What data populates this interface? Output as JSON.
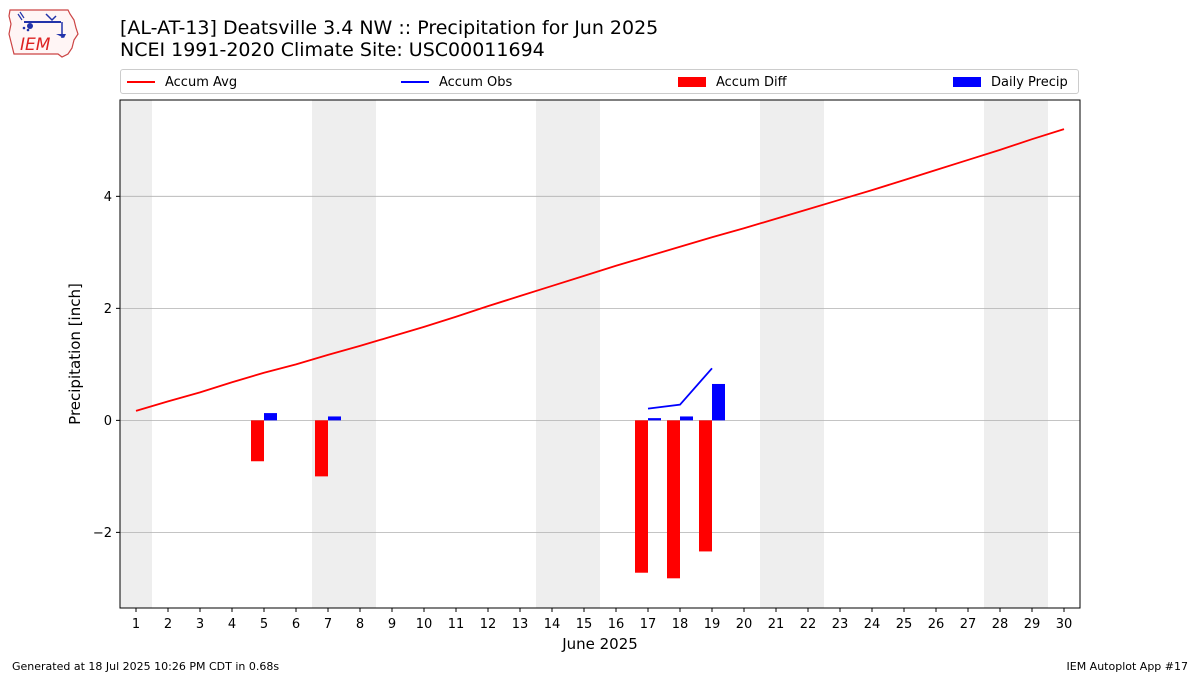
{
  "header": {
    "title_line1": "[AL-AT-13] Deatsville 3.4 NW :: Precipitation for Jun 2025",
    "title_line2": "NCEI 1991-2020 Climate Site: USC00011694"
  },
  "logo": {
    "text": "IEM",
    "icon": "iem-iowa-logo-icon"
  },
  "footer": {
    "left": "Generated at 18 Jul 2025 10:26 PM CDT in 0.68s",
    "right": "IEM Autoplot App #17"
  },
  "chart_data": {
    "type": "bar",
    "title": "[AL-AT-13] Deatsville 3.4 NW :: Precipitation for Jun 2025",
    "subtitle": "NCEI 1991-2020 Climate Site: USC00011694",
    "xlabel": "June 2025",
    "ylabel": "Precipitation [inch]",
    "xlim": [
      0.5,
      30.5
    ],
    "ylim": [
      -3.35,
      5.72
    ],
    "yticks": [
      -2,
      0,
      2,
      4
    ],
    "xticks": [
      1,
      2,
      3,
      4,
      5,
      6,
      7,
      8,
      9,
      10,
      11,
      12,
      13,
      14,
      15,
      16,
      17,
      18,
      19,
      20,
      21,
      22,
      23,
      24,
      25,
      26,
      27,
      28,
      29,
      30
    ],
    "grid": "horizontal",
    "legend_position": "top",
    "weekend_shading": [
      [
        0.5,
        1.5
      ],
      [
        6.5,
        8.5
      ],
      [
        13.5,
        15.5
      ],
      [
        20.5,
        22.5
      ],
      [
        27.5,
        29.5
      ]
    ],
    "series": [
      {
        "name": "Accum Avg",
        "type": "line",
        "color": "#ff0000",
        "x": [
          1,
          2,
          3,
          4,
          5,
          6,
          7,
          8,
          9,
          10,
          11,
          12,
          13,
          14,
          15,
          16,
          17,
          18,
          19,
          20,
          21,
          22,
          23,
          24,
          25,
          26,
          27,
          28,
          29,
          30
        ],
        "values": [
          0.17,
          0.34,
          0.5,
          0.68,
          0.85,
          1.0,
          1.17,
          1.33,
          1.5,
          1.67,
          1.85,
          2.04,
          2.22,
          2.4,
          2.58,
          2.76,
          2.93,
          3.1,
          3.27,
          3.43,
          3.6,
          3.77,
          3.94,
          4.11,
          4.29,
          4.47,
          4.65,
          4.83,
          5.02,
          5.2
        ]
      },
      {
        "name": "Accum Obs",
        "type": "line",
        "color": "#0000ff",
        "x": [
          17,
          18,
          19
        ],
        "values": [
          0.21,
          0.28,
          0.93
        ]
      },
      {
        "name": "Accum Diff",
        "type": "bar",
        "color": "#ff0000",
        "x": [
          5,
          7,
          17,
          18,
          19
        ],
        "values": [
          -0.73,
          -1.0,
          -2.72,
          -2.82,
          -2.34
        ]
      },
      {
        "name": "Daily Precip",
        "type": "bar",
        "color": "#0000ff",
        "x": [
          5,
          7,
          17,
          18,
          19
        ],
        "values": [
          0.13,
          0.07,
          0.04,
          0.07,
          0.65
        ]
      }
    ]
  }
}
